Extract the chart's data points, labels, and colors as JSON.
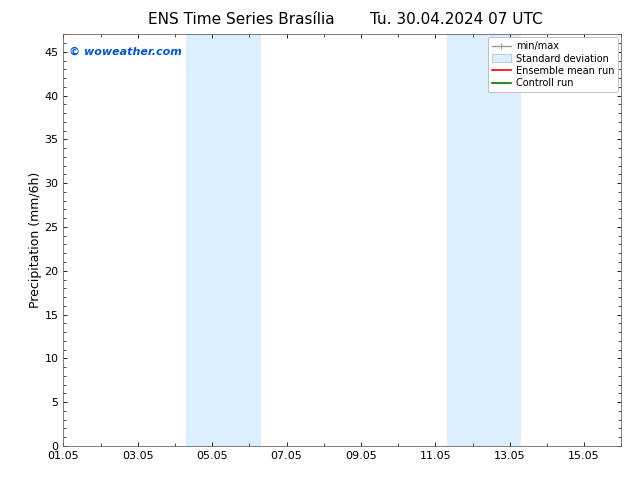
{
  "title_left": "ENS Time Series Brasília",
  "title_right": "Tu. 30.04.2024 07 UTC",
  "ylabel": "Precipitation (mm/6h)",
  "watermark": "© woweather.com",
  "watermark_color": "#0055cc",
  "background_color": "#ffffff",
  "plot_bg_color": "#ffffff",
  "xmin": 0.0,
  "xmax": 15.0,
  "ymin": 0,
  "ymax": 47,
  "yticks": [
    0,
    5,
    10,
    15,
    20,
    25,
    30,
    35,
    40,
    45
  ],
  "xtick_labels": [
    "01.05",
    "03.05",
    "05.05",
    "07.05",
    "09.05",
    "11.05",
    "13.05",
    "15.05"
  ],
  "xtick_positions": [
    0,
    2,
    4,
    6,
    8,
    10,
    12,
    14
  ],
  "shaded_regions": [
    {
      "xstart": 3.3,
      "xend": 5.3,
      "color": "#ddeeff"
    },
    {
      "xstart": 10.3,
      "xend": 12.3,
      "color": "#ddeeff"
    }
  ],
  "legend_entries": [
    {
      "label": "min/max"
    },
    {
      "label": "Standard deviation"
    },
    {
      "label": "Ensemble mean run"
    },
    {
      "label": "Controll run"
    }
  ],
  "legend_colors": {
    "minmax_line": "#999999",
    "std_dev_face": "#ddeeff",
    "std_dev_edge": "#aabbcc",
    "ensemble": "#ff0000",
    "control": "#007700"
  },
  "title_fontsize": 11,
  "ylabel_fontsize": 9,
  "tick_fontsize": 8,
  "watermark_fontsize": 8,
  "legend_fontsize": 7
}
